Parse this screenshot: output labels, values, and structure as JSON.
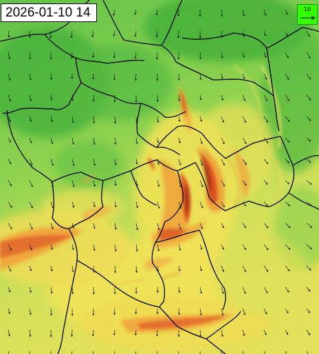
{
  "timestamp": "2026-01-10 14",
  "scale_key": {
    "label": "10",
    "color": "#33ff00"
  },
  "colors": {
    "calm": "#3cae38",
    "low": "#8fd14e",
    "moderate": "#f1e357",
    "high": "#f0a43c",
    "very_high": "#d94a1e",
    "extreme": "#8e2410",
    "borders": "#000000",
    "vectors": "#1a1a1a"
  },
  "icons": [
    "wind-vector-arrow",
    "scale-arrow"
  ]
}
